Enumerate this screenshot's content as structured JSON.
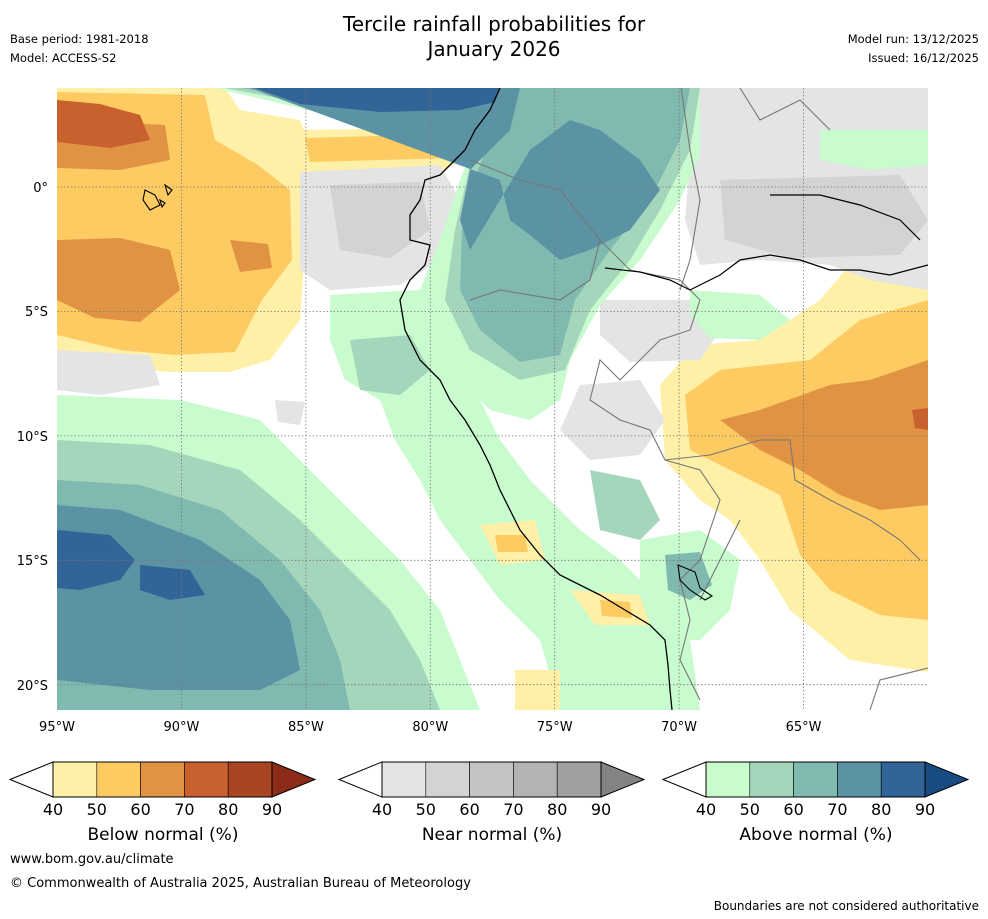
{
  "title_line1": "Tercile rainfall probabilities for",
  "title_line2": "January 2026",
  "base_period": "Base period: 1981-2018",
  "model": "Model: ACCESS-S2",
  "model_run": "Model run: 13/12/2025",
  "issued": "Issued: 16/12/2025",
  "lat_labels": [
    "0°",
    "5°S",
    "10°S",
    "15°S",
    "20°S"
  ],
  "lon_labels": [
    "95°W",
    "90°W",
    "85°W",
    "80°W",
    "75°W",
    "70°W",
    "65°W"
  ],
  "colorbars": [
    {
      "name": "below",
      "label": "Below normal (%)",
      "ticks": [
        "40",
        "50",
        "60",
        "70",
        "80",
        "90"
      ],
      "colors": [
        "#fff0a8",
        "#fecb62",
        "#e09343",
        "#c9612f",
        "#aa4524"
      ],
      "extend_color": "#8b2b18"
    },
    {
      "name": "near",
      "label": "Near normal (%)",
      "ticks": [
        "40",
        "50",
        "60",
        "70",
        "80",
        "90"
      ],
      "colors": [
        "#e4e4e4",
        "#d3d3d3",
        "#c3c3c3",
        "#b3b3b3",
        "#a0a0a0"
      ],
      "extend_color": "#838383"
    },
    {
      "name": "above",
      "label": "Above normal (%)",
      "ticks": [
        "40",
        "50",
        "60",
        "70",
        "80",
        "90"
      ],
      "colors": [
        "#c8fbcd",
        "#a4d6bb",
        "#80b9b0",
        "#5b93a5",
        "#326498"
      ],
      "extend_color": "#174b82"
    }
  ],
  "footer_url": "www.bom.gov.au/climate",
  "footer_copyright": "© Commonwealth of Australia 2025, Australian Bureau of Meteorology",
  "footnote": "Boundaries are not considered authoritative"
}
